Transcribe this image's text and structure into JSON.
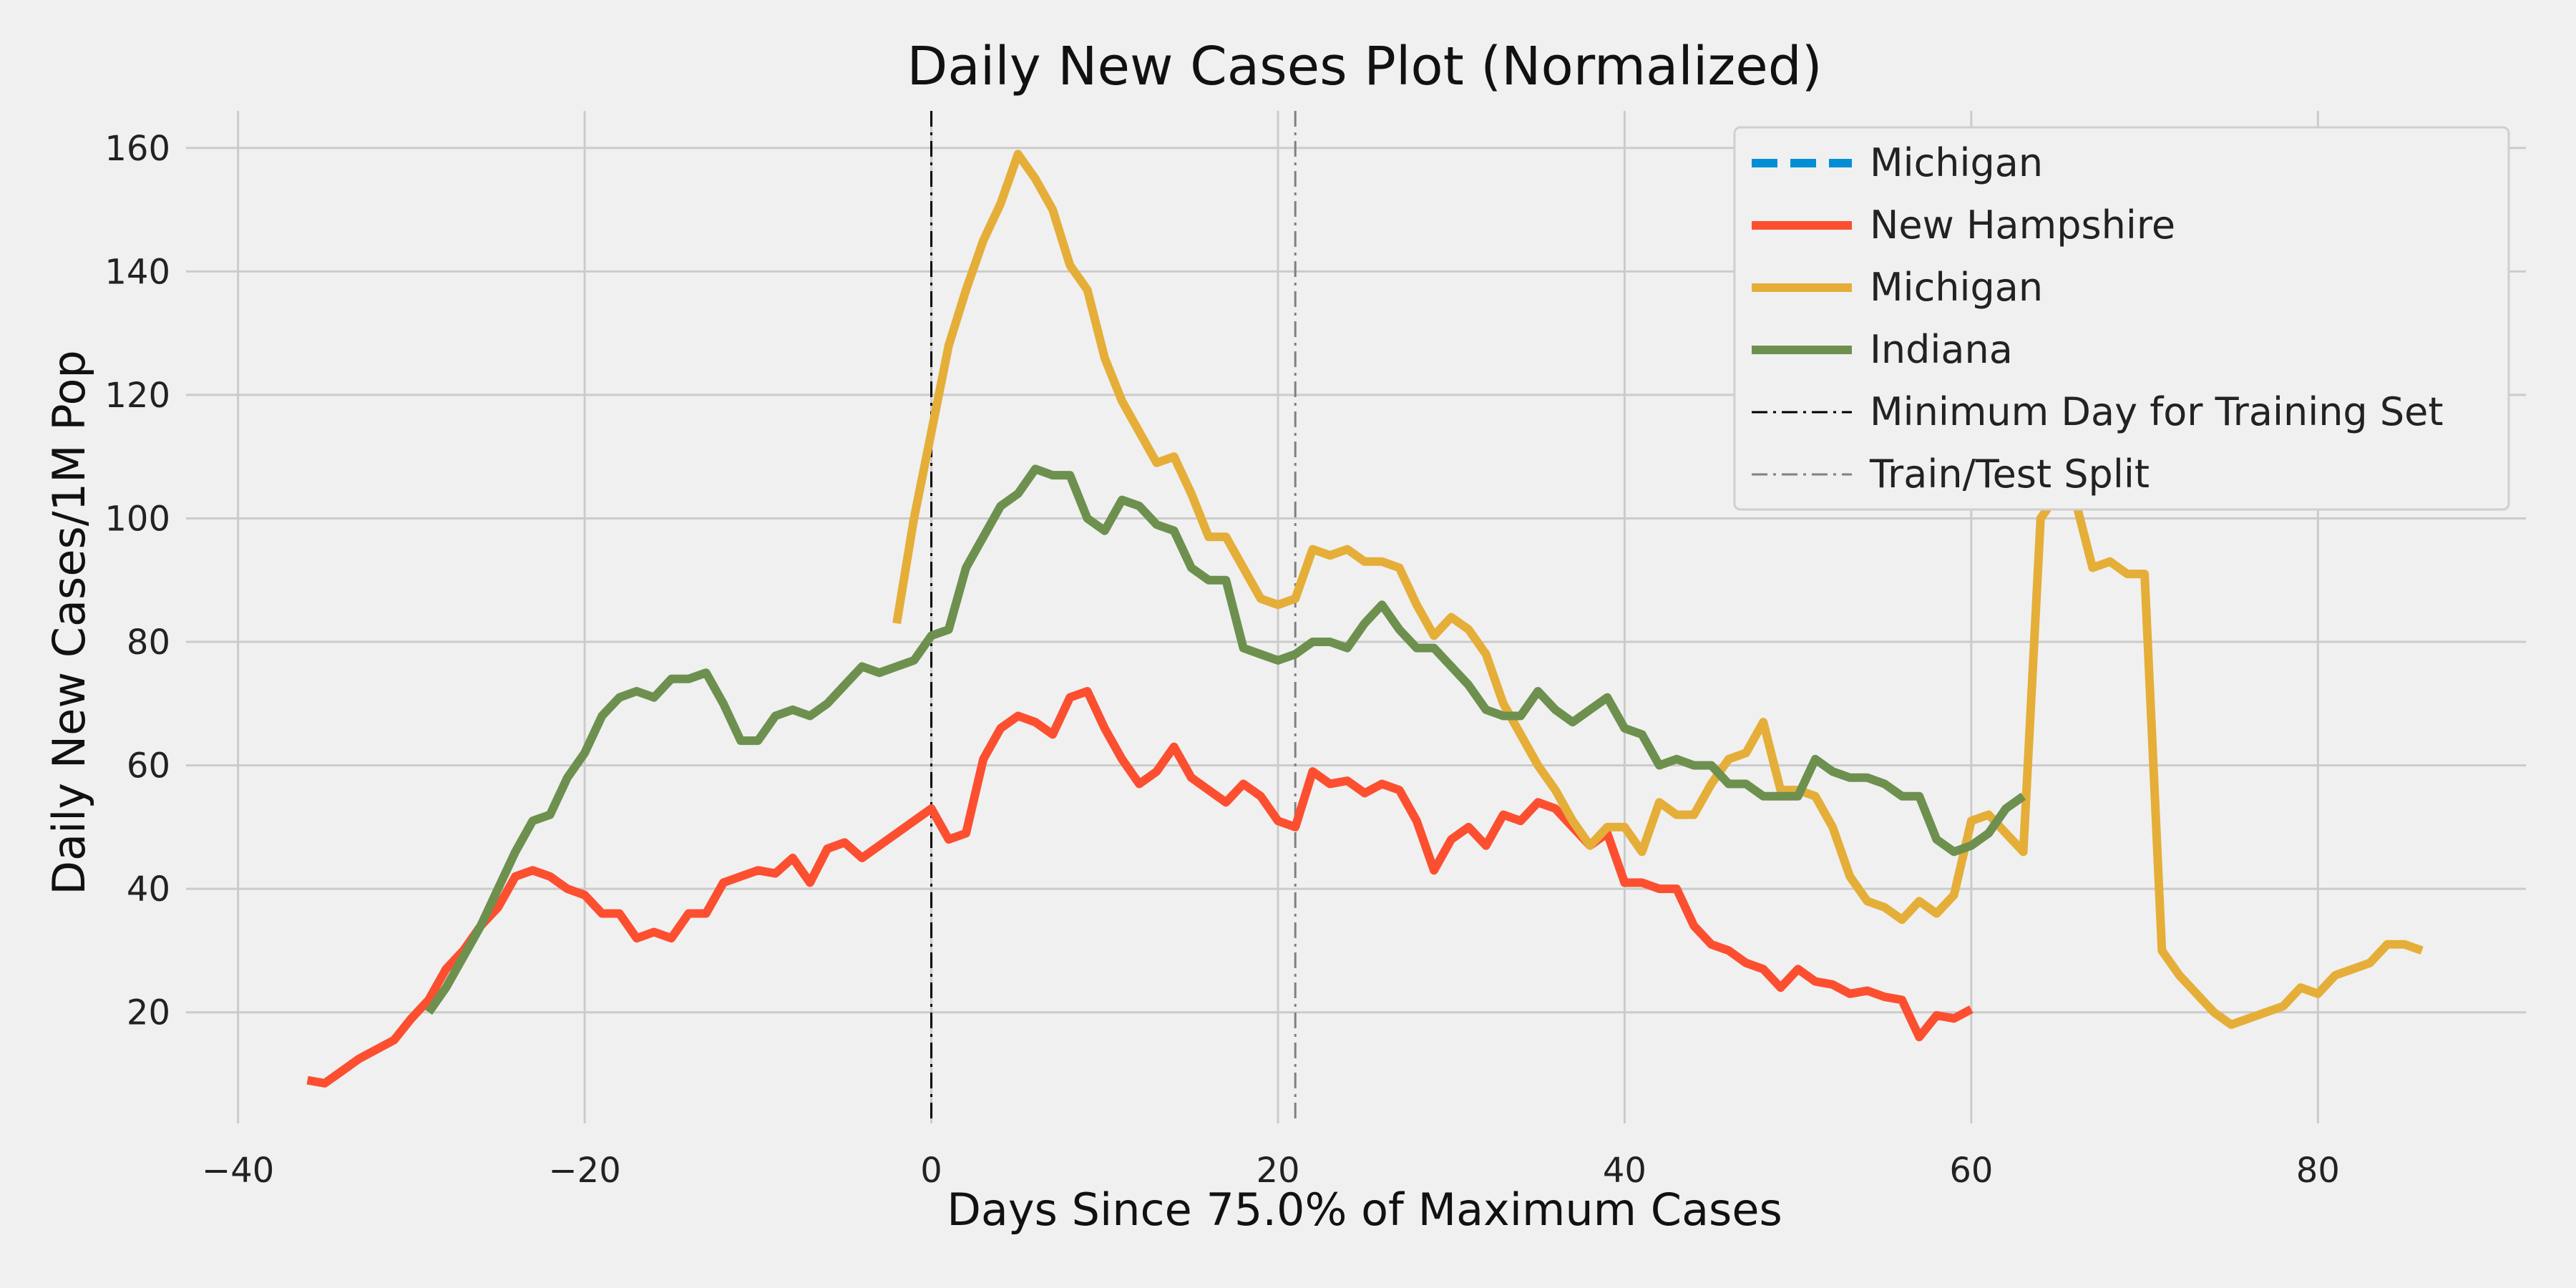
{
  "chart_data": {
    "type": "line",
    "title": "Daily New Cases Plot (Normalized)",
    "xlabel": "Days Since 75.0% of Maximum Cases",
    "ylabel": "Daily New Cases/1M Pop",
    "xlim": [
      -43,
      92
    ],
    "ylim": [
      2,
      166
    ],
    "xticks": [
      -40,
      -20,
      0,
      20,
      40,
      60,
      80
    ],
    "yticks": [
      20,
      40,
      60,
      80,
      100,
      120,
      140,
      160
    ],
    "xtick_labels": [
      "−40",
      "−20",
      "0",
      "20",
      "40",
      "60",
      "80"
    ],
    "ytick_labels": [
      "20",
      "40",
      "60",
      "80",
      "100",
      "120",
      "140",
      "160"
    ],
    "grid": true,
    "legend_position": "top-right",
    "background_color": "#f0f0f0",
    "grid_color": "#cbcbcb",
    "series": [
      {
        "name": "Michigan",
        "style": "dashed",
        "color": "#008fd5",
        "x": [],
        "y": []
      },
      {
        "name": "New Hampshire",
        "style": "solid",
        "color": "#fc4f30",
        "x": [
          -36,
          -35,
          -34,
          -33,
          -32,
          -31,
          -30,
          -29,
          -28,
          -27,
          -26,
          -25,
          -24,
          -23,
          -22,
          -21,
          -20,
          -19,
          -18,
          -17,
          -16,
          -15,
          -14,
          -13,
          -12,
          -11,
          -10,
          -9,
          -8,
          -7,
          -6,
          -5,
          -4,
          -3,
          -2,
          -1,
          0,
          1,
          2,
          3,
          4,
          5,
          6,
          7,
          8,
          9,
          10,
          11,
          12,
          13,
          14,
          15,
          16,
          17,
          18,
          19,
          20,
          21,
          22,
          23,
          24,
          25,
          26,
          27,
          28,
          29,
          30,
          31,
          32,
          33,
          34,
          35,
          36,
          37,
          38,
          39,
          40,
          41,
          42,
          43,
          44,
          45,
          46,
          47,
          48,
          49,
          50,
          51,
          52,
          53,
          54,
          55,
          56,
          57,
          58,
          59,
          60
        ],
        "y": [
          9,
          8.5,
          10.5,
          12.5,
          14,
          15.5,
          19,
          22,
          27,
          30,
          34,
          37,
          42,
          43,
          42,
          40,
          39,
          36,
          36,
          32,
          33,
          32,
          36,
          36,
          41,
          42,
          43,
          42.5,
          45,
          41,
          46.5,
          47.5,
          45,
          47,
          49,
          51,
          53,
          48,
          49,
          61,
          66,
          68,
          67,
          65,
          71,
          72,
          66,
          61,
          57,
          59,
          63,
          58,
          56,
          54,
          57,
          55,
          51,
          50,
          59,
          57,
          57.5,
          55.5,
          57,
          56,
          51,
          43,
          48,
          50,
          47,
          52,
          51,
          54,
          53,
          50,
          47,
          49,
          41,
          41,
          40,
          40,
          34,
          31,
          30,
          28,
          27,
          24,
          27,
          25,
          24.5,
          23,
          23.5,
          22.5,
          22,
          16,
          19.5,
          19,
          20.5
        ]
      },
      {
        "name": "Michigan",
        "style": "solid",
        "color": "#e5ae38",
        "x": [
          -2,
          -1,
          0,
          1,
          2,
          3,
          4,
          5,
          6,
          7,
          8,
          9,
          10,
          11,
          12,
          13,
          14,
          15,
          16,
          17,
          18,
          19,
          20,
          21,
          22,
          23,
          24,
          25,
          26,
          27,
          28,
          29,
          30,
          31,
          32,
          33,
          34,
          35,
          36,
          37,
          38,
          39,
          40,
          41,
          42,
          43,
          44,
          45,
          46,
          47,
          48,
          49,
          50,
          51,
          52,
          53,
          54,
          55,
          56,
          57,
          58,
          59,
          60,
          61,
          62,
          63,
          64,
          65,
          66,
          67,
          68,
          69,
          70,
          71,
          72,
          73,
          74,
          75,
          76,
          77,
          78,
          79,
          80,
          81,
          82,
          83,
          84,
          85,
          86
        ],
        "y": [
          83,
          100,
          114,
          128,
          137,
          145,
          151,
          159,
          155,
          150,
          141,
          137,
          126,
          119,
          114,
          109,
          110,
          104,
          97,
          97,
          92,
          87,
          86,
          87,
          95,
          94,
          95,
          93,
          93,
          92,
          86,
          81,
          84,
          82,
          78,
          70,
          65,
          60,
          56,
          51,
          47,
          50,
          50,
          46,
          54,
          52,
          52,
          57,
          61,
          62,
          67,
          56,
          56,
          55,
          50,
          42,
          38,
          37,
          35,
          38,
          36,
          39,
          51,
          52,
          49,
          46,
          100,
          104,
          103,
          92,
          93,
          91,
          91,
          30,
          26,
          23,
          20,
          18,
          19,
          20,
          21,
          24,
          23,
          26,
          27,
          28,
          31,
          31,
          30
        ]
      },
      {
        "name": "Indiana",
        "style": "solid",
        "color": "#6d904f",
        "x": [
          -29,
          -28,
          -27,
          -26,
          -25,
          -24,
          -23,
          -22,
          -21,
          -20,
          -19,
          -18,
          -17,
          -16,
          -15,
          -14,
          -13,
          -12,
          -11,
          -10,
          -9,
          -8,
          -7,
          -6,
          -5,
          -4,
          -3,
          -2,
          -1,
          0,
          1,
          2,
          3,
          4,
          5,
          6,
          7,
          8,
          9,
          10,
          11,
          12,
          13,
          14,
          15,
          16,
          17,
          18,
          19,
          20,
          21,
          22,
          23,
          24,
          25,
          26,
          27,
          28,
          29,
          30,
          31,
          32,
          33,
          34,
          35,
          36,
          37,
          38,
          39,
          40,
          41,
          42,
          43,
          44,
          45,
          46,
          47,
          48,
          49,
          50,
          51,
          52,
          53,
          54,
          55,
          56,
          57,
          58,
          59,
          60,
          61,
          62,
          63
        ],
        "y": [
          20,
          24,
          29,
          34,
          40,
          46,
          51,
          52,
          58,
          62,
          68,
          71,
          72,
          71,
          74,
          74,
          75,
          70,
          64,
          64,
          68,
          69,
          68,
          70,
          73,
          76,
          75,
          76,
          77,
          81,
          82,
          92,
          97,
          102,
          104,
          108,
          107,
          107,
          100,
          98,
          103,
          102,
          99,
          98,
          92,
          90,
          90,
          79,
          78,
          77,
          78,
          80,
          80,
          79,
          83,
          86,
          82,
          79,
          79,
          76,
          73,
          69,
          68,
          68,
          72,
          69,
          67,
          69,
          71,
          66,
          65,
          60,
          61,
          60,
          60,
          57,
          57,
          55,
          55,
          55,
          61,
          59,
          58,
          58,
          57,
          55,
          55,
          48,
          46,
          47,
          49,
          53,
          55
        ]
      }
    ],
    "vlines": [
      {
        "name": "Minimum Day for Training Set",
        "x": 0,
        "style": "dashdot",
        "color": "#000000"
      },
      {
        "name": "Train/Test Split",
        "x": 21,
        "style": "dashdot",
        "color": "#808080"
      }
    ]
  }
}
